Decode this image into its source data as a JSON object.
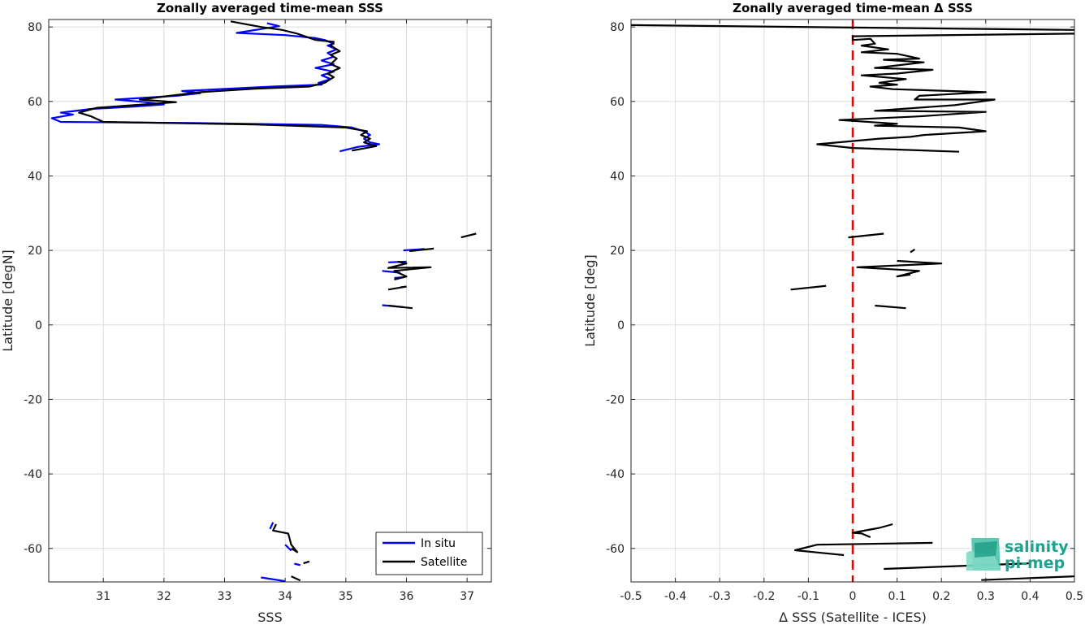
{
  "chart_data": [
    {
      "type": "line",
      "title": "Zonally averaged time-mean SSS",
      "xlabel": "SSS",
      "ylabel": "Latitude [degN]",
      "xlim": [
        30.1,
        37.4
      ],
      "ylim": [
        -69,
        82
      ],
      "xticks": [
        "31",
        "32",
        "33",
        "34",
        "35",
        "36",
        "37"
      ],
      "yticks": [
        "-60",
        "-40",
        "-20",
        "0",
        "20",
        "40",
        "60",
        "80"
      ],
      "grid": true,
      "legend_position": "bottom-right",
      "series": [
        {
          "name": "In situ",
          "color": "#0000ff",
          "segments": [
            [
              [
                33.7,
                81.0
              ],
              [
                33.9,
                80.2
              ],
              [
                33.2,
                78.4
              ],
              [
                34.0,
                77.8
              ],
              [
                34.5,
                77.0
              ],
              [
                34.65,
                76.5
              ],
              [
                34.8,
                75.5
              ],
              [
                34.7,
                75.0
              ],
              [
                34.85,
                74.0
              ],
              [
                34.7,
                73.0
              ],
              [
                34.8,
                72.0
              ],
              [
                34.6,
                71.0
              ],
              [
                34.8,
                70.0
              ],
              [
                34.5,
                69.0
              ],
              [
                34.8,
                68.0
              ],
              [
                34.6,
                67.0
              ],
              [
                34.75,
                66.0
              ],
              [
                34.55,
                65.0
              ],
              [
                34.6,
                64.5
              ],
              [
                33.8,
                64.0
              ],
              [
                32.3,
                62.8
              ],
              [
                32.6,
                62.2
              ],
              [
                32.2,
                61.5
              ],
              [
                31.2,
                60.5
              ],
              [
                31.7,
                59.8
              ],
              [
                32.0,
                59.2
              ],
              [
                31.5,
                58.6
              ],
              [
                30.8,
                58.0
              ],
              [
                30.3,
                57.0
              ],
              [
                30.5,
                56.5
              ],
              [
                30.15,
                55.5
              ],
              [
                30.3,
                54.5
              ],
              [
                32.5,
                54.2
              ],
              [
                34.6,
                53.7
              ],
              [
                35.1,
                53.0
              ],
              [
                35.3,
                52.0
              ],
              [
                35.4,
                51.0
              ],
              [
                35.3,
                50.0
              ],
              [
                35.4,
                49.0
              ],
              [
                35.55,
                48.5
              ],
              [
                35.2,
                47.8
              ],
              [
                34.9,
                46.6
              ]
            ],
            [
              [
                35.95,
                20.0
              ],
              [
                36.3,
                20.4
              ]
            ],
            [
              [
                35.7,
                16.8
              ],
              [
                36.0,
                17.0
              ]
            ],
            [
              [
                35.6,
                14.5
              ],
              [
                35.9,
                14.0
              ]
            ],
            [
              [
                35.8,
                12.6
              ],
              [
                35.95,
                12.8
              ]
            ],
            [
              [
                35.9,
                10.1
              ],
              [
                36.0,
                10.3
              ]
            ],
            [
              [
                35.6,
                5.3
              ],
              [
                35.95,
                4.8
              ]
            ],
            [
              [
                33.8,
                -53.0
              ],
              [
                33.75,
                -54.8
              ]
            ],
            [
              [
                34.0,
                -59.0
              ],
              [
                34.1,
                -60.6
              ]
            ],
            [
              [
                34.25,
                -64.5
              ],
              [
                34.15,
                -64.1
              ]
            ],
            [
              [
                33.6,
                -67.8
              ],
              [
                34.0,
                -68.8
              ]
            ]
          ]
        },
        {
          "name": "Satellite",
          "color": "#000000",
          "segments": [
            [
              [
                33.1,
                81.5
              ],
              [
                33.6,
                80.0
              ],
              [
                33.95,
                79.2
              ],
              [
                34.2,
                78.2
              ],
              [
                34.5,
                76.5
              ],
              [
                34.8,
                76.0
              ],
              [
                34.75,
                75.0
              ],
              [
                34.9,
                73.5
              ],
              [
                34.75,
                72.5
              ],
              [
                34.85,
                71.5
              ],
              [
                34.75,
                70.0
              ],
              [
                34.9,
                69.0
              ],
              [
                34.7,
                67.5
              ],
              [
                34.8,
                66.5
              ],
              [
                34.65,
                65.0
              ],
              [
                34.4,
                64.0
              ],
              [
                33.5,
                63.4
              ],
              [
                32.6,
                62.5
              ],
              [
                32.1,
                61.5
              ],
              [
                31.6,
                60.5
              ],
              [
                32.2,
                59.8
              ],
              [
                31.5,
                59.0
              ],
              [
                30.9,
                58.3
              ],
              [
                30.6,
                57.0
              ],
              [
                30.8,
                56.0
              ],
              [
                31.0,
                54.5
              ],
              [
                33.5,
                53.8
              ],
              [
                35.0,
                53.0
              ],
              [
                35.35,
                52.0
              ],
              [
                35.25,
                51.0
              ],
              [
                35.4,
                50.0
              ],
              [
                35.3,
                49.0
              ],
              [
                35.5,
                48.0
              ],
              [
                35.1,
                46.8
              ]
            ],
            [
              [
                36.9,
                23.5
              ],
              [
                37.15,
                24.5
              ]
            ],
            [
              [
                36.05,
                19.8
              ],
              [
                36.45,
                20.5
              ]
            ],
            [
              [
                35.85,
                17.0
              ],
              [
                36.0,
                16.5
              ],
              [
                35.7,
                15.3
              ],
              [
                36.4,
                15.5
              ],
              [
                35.8,
                14.5
              ],
              [
                36.0,
                13.0
              ],
              [
                35.8,
                12.2
              ]
            ],
            [
              [
                35.7,
                9.5
              ],
              [
                36.0,
                10.3
              ]
            ],
            [
              [
                35.7,
                5.2
              ],
              [
                36.1,
                4.5
              ]
            ],
            [
              [
                33.85,
                -53.5
              ],
              [
                33.8,
                -55.2
              ],
              [
                34.05,
                -56.0
              ],
              [
                34.1,
                -59.0
              ],
              [
                34.2,
                -61.0
              ],
              [
                34.1,
                -60.0
              ]
            ],
            [
              [
                34.3,
                -64.0
              ],
              [
                34.4,
                -63.5
              ]
            ],
            [
              [
                34.1,
                -67.5
              ],
              [
                34.25,
                -68.6
              ]
            ]
          ]
        }
      ]
    },
    {
      "type": "line",
      "title": "Zonally averaged time-mean Δ SSS",
      "xlabel": "Δ SSS (Satellite - ICES)",
      "ylabel": "Latitude [deg]",
      "xlim": [
        -0.5,
        0.5
      ],
      "ylim": [
        -69,
        82
      ],
      "xticks": [
        "-0.5",
        "-0.4",
        "-0.3",
        "-0.2",
        "-0.1",
        "0",
        "0.1",
        "0.2",
        "0.3",
        "0.4",
        "0.5"
      ],
      "yticks": [
        "-60",
        "-40",
        "-20",
        "0",
        "20",
        "40",
        "60",
        "80"
      ],
      "grid": true,
      "reference_line": {
        "x": 0,
        "color": "#ff0000",
        "style": "dashed"
      },
      "series": [
        {
          "color": "#000000",
          "segments": [
            [
              [
                -0.5,
                80.5
              ],
              [
                0.5,
                79.2
              ]
            ],
            [
              [
                0.5,
                78.2
              ],
              [
                0.0,
                77.5
              ],
              [
                0.0,
                76.5
              ],
              [
                0.04,
                76.8
              ],
              [
                0.05,
                75.5
              ],
              [
                0.02,
                75.0
              ],
              [
                0.08,
                74.0
              ],
              [
                0.02,
                73.2
              ],
              [
                0.1,
                72.8
              ],
              [
                0.15,
                71.5
              ],
              [
                0.07,
                71.2
              ],
              [
                0.16,
                70.5
              ],
              [
                0.05,
                69.0
              ],
              [
                0.18,
                68.5
              ],
              [
                0.1,
                67.5
              ],
              [
                0.02,
                67.0
              ],
              [
                0.12,
                66.0
              ],
              [
                0.06,
                65.0
              ],
              [
                0.1,
                64.5
              ],
              [
                0.04,
                64.0
              ],
              [
                0.09,
                63.3
              ],
              [
                0.3,
                62.5
              ],
              [
                0.15,
                61.5
              ],
              [
                0.14,
                60.5
              ],
              [
                0.32,
                60.5
              ],
              [
                0.23,
                59.0
              ],
              [
                0.05,
                57.5
              ],
              [
                0.3,
                57.2
              ],
              [
                0.15,
                56.0
              ],
              [
                -0.03,
                55.0
              ],
              [
                0.1,
                54.0
              ],
              [
                0.05,
                53.5
              ],
              [
                0.24,
                53.0
              ],
              [
                0.3,
                52.0
              ],
              [
                0.16,
                51.0
              ],
              [
                0.13,
                50.5
              ],
              [
                0.06,
                50.0
              ],
              [
                -0.08,
                48.5
              ],
              [
                0.0,
                47.5
              ],
              [
                0.24,
                46.5
              ]
            ],
            [
              [
                -0.01,
                23.5
              ],
              [
                0.07,
                24.5
              ]
            ],
            [
              [
                0.13,
                19.5
              ],
              [
                0.14,
                20.3
              ]
            ],
            [
              [
                0.1,
                17.2
              ],
              [
                0.2,
                16.5
              ],
              [
                0.01,
                15.5
              ],
              [
                0.15,
                14.5
              ],
              [
                0.1,
                13.0
              ],
              [
                0.13,
                13.5
              ]
            ],
            [
              [
                -0.14,
                9.5
              ],
              [
                -0.06,
                10.5
              ]
            ],
            [
              [
                0.05,
                5.2
              ],
              [
                0.12,
                4.5
              ]
            ],
            [
              [
                0.09,
                -53.5
              ],
              [
                0.06,
                -54.5
              ],
              [
                0.0,
                -55.8
              ],
              [
                0.02,
                -56.0
              ],
              [
                0.04,
                -57.0
              ]
            ],
            [
              [
                0.18,
                -58.5
              ],
              [
                -0.08,
                -59.0
              ],
              [
                -0.13,
                -60.5
              ],
              [
                -0.02,
                -61.8
              ]
            ],
            [
              [
                0.07,
                -65.5
              ],
              [
                0.4,
                -64.0
              ]
            ],
            [
              [
                0.29,
                -68.5
              ],
              [
                0.5,
                -67.5
              ]
            ]
          ]
        }
      ]
    }
  ],
  "legend": {
    "items": [
      "In situ",
      "Satellite"
    ]
  },
  "logo": {
    "line1": "salinity",
    "line2": "pi-mep"
  }
}
